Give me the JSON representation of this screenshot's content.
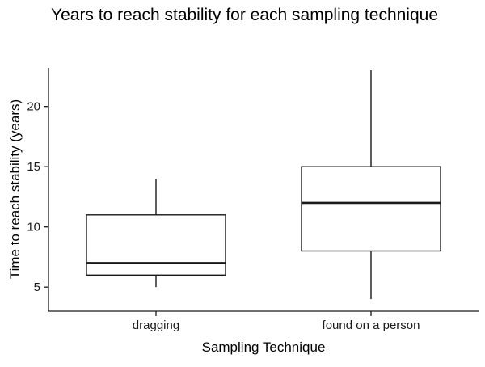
{
  "chart_data": {
    "type": "boxplot",
    "title": "Years to reach stability for each sampling technique",
    "xlabel": "Sampling Technique",
    "ylabel": "Time to reach stability (years)",
    "categories": [
      "dragging",
      "found on a person"
    ],
    "series": [
      {
        "name": "dragging",
        "min": 5,
        "q1": 6,
        "median": 7,
        "q3": 11,
        "max": 14
      },
      {
        "name": "found on a person",
        "min": 4,
        "q1": 8,
        "median": 12,
        "q3": 15,
        "max": 23
      }
    ],
    "yticks": [
      5,
      10,
      15,
      20
    ],
    "ylim": [
      3.0,
      23.2
    ],
    "grid": false,
    "legend": "none",
    "line_color": "#1a1a1a",
    "box_fill": "#ffffff",
    "background": "#ffffff"
  }
}
